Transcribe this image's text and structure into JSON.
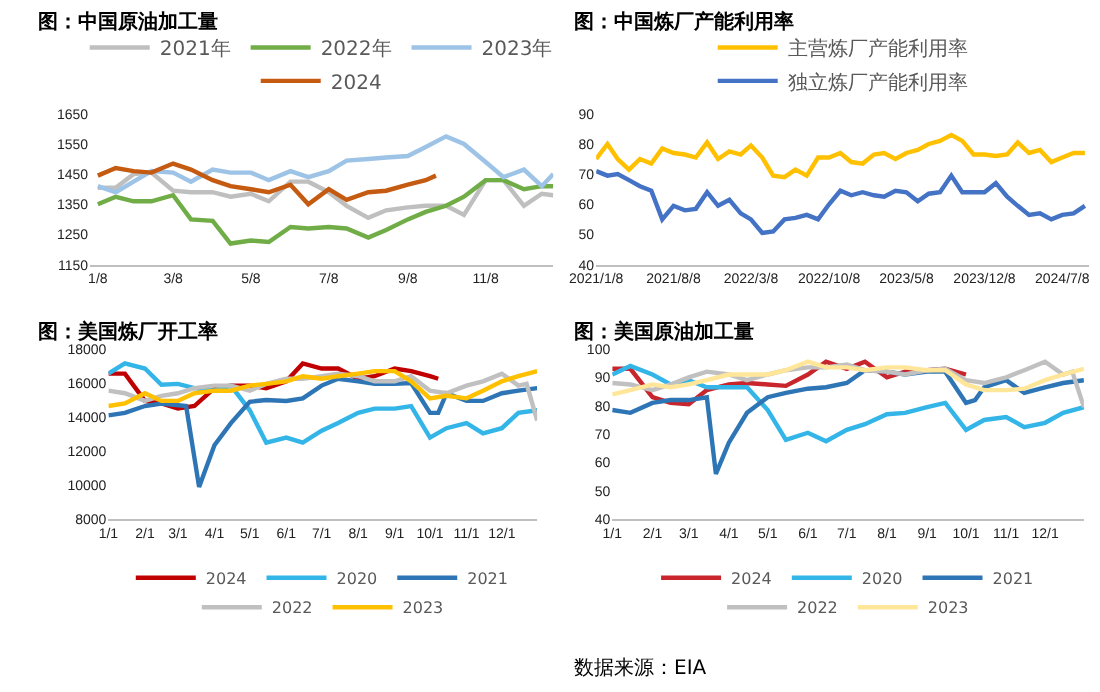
{
  "chart_data": [
    {
      "type": "line",
      "title": "图：中国原油加工量",
      "legend": "top",
      "x": [
        "--01-08",
        "--01-22",
        "--02-05",
        "--02-19",
        "--03-08",
        "--03-22",
        "--04-08",
        "--04-22",
        "--05-08",
        "--05-22",
        "--06-08",
        "--06-22",
        "--07-08",
        "--07-22",
        "--08-08",
        "--08-22",
        "--09-08",
        "--09-22",
        "--10-08",
        "--10-22",
        "--11-08",
        "--11-22",
        "--12-08",
        "--12-22",
        "--12-31"
      ],
      "xlim": [
        "--01-02",
        "--12-31"
      ],
      "xticks": [
        {
          "value": "--01-08",
          "label": "1/8"
        },
        {
          "value": "--03-08",
          "label": "3/8"
        },
        {
          "value": "--05-08",
          "label": "5/8"
        },
        {
          "value": "--07-08",
          "label": "7/8"
        },
        {
          "value": "--09-08",
          "label": "9/8"
        },
        {
          "value": "--11-08",
          "label": "11/8"
        }
      ],
      "ylim": [
        1150,
        1650
      ],
      "yticks": [
        1150,
        1250,
        1350,
        1450,
        1550,
        1650
      ],
      "series": [
        {
          "name": "2021年",
          "color": "#bfbfbf",
          "values": [
            1405,
            1405,
            1450,
            1455,
            1395,
            1390,
            1390,
            1375,
            1385,
            1360,
            1425,
            1425,
            1390,
            1345,
            1305,
            1330,
            1340,
            1345,
            1345,
            1315,
            1430,
            1430,
            1345,
            1385,
            1380
          ]
        },
        {
          "name": "2022年",
          "color": "#70ad47",
          "values": [
            1350,
            1375,
            1360,
            1360,
            1380,
            1300,
            1295,
            1220,
            1230,
            1225,
            1275,
            1270,
            1275,
            1270,
            1240,
            1265,
            1300,
            1325,
            1345,
            1375,
            1430,
            1430,
            1400,
            1410,
            1410
          ]
        },
        {
          "name": "2023年",
          "color": "#9dc3e6",
          "values": [
            1410,
            1390,
            1425,
            1460,
            1455,
            1425,
            1465,
            1455,
            1455,
            1430,
            1460,
            1440,
            1460,
            1495,
            1500,
            1505,
            1510,
            1540,
            1575,
            1550,
            1490,
            1440,
            1465,
            1410,
            1450
          ]
        },
        {
          "name": "2024",
          "color": "#c55a11",
          "x": [
            "--01-08",
            "--01-22",
            "--02-05",
            "--02-19",
            "--03-08",
            "--03-22",
            "--04-08",
            "--04-22",
            "--05-08",
            "--05-22",
            "--06-08",
            "--06-22",
            "--07-08",
            "--07-22",
            "--08-08",
            "--08-22",
            "--09-08",
            "--09-22",
            "--09-30"
          ],
          "values": [
            1445,
            1470,
            1460,
            1455,
            1485,
            1465,
            1430,
            1410,
            1400,
            1390,
            1415,
            1350,
            1400,
            1365,
            1390,
            1395,
            1415,
            1430,
            1445
          ]
        }
      ]
    },
    {
      "type": "line",
      "title": "图：中国炼厂产能利用率",
      "legend": "top",
      "x": [
        "2021-01-08",
        "2021-02-08",
        "2021-03-08",
        "2021-04-08",
        "2021-05-08",
        "2021-06-08",
        "2021-07-08",
        "2021-08-08",
        "2021-09-08",
        "2021-10-08",
        "2021-11-08",
        "2021-12-08",
        "2022-01-08",
        "2022-02-08",
        "2022-03-08",
        "2022-04-08",
        "2022-05-08",
        "2022-06-08",
        "2022-07-08",
        "2022-08-08",
        "2022-09-08",
        "2022-10-08",
        "2022-11-08",
        "2022-12-08",
        "2023-01-08",
        "2023-02-08",
        "2023-03-08",
        "2023-04-08",
        "2023-05-08",
        "2023-06-08",
        "2023-07-08",
        "2023-08-08",
        "2023-09-08",
        "2023-10-08",
        "2023-11-08",
        "2023-12-08",
        "2024-01-08",
        "2024-02-08",
        "2024-03-08",
        "2024-04-08",
        "2024-05-08",
        "2024-06-08",
        "2024-07-08",
        "2024-08-08",
        "2024-09-08"
      ],
      "xlim": [
        "2021-01-08",
        "2024-09-20"
      ],
      "xticks": [
        {
          "value": "2021-01-08",
          "label": "2021/1/8"
        },
        {
          "value": "2021-08-08",
          "label": "2021/8/8"
        },
        {
          "value": "2022-03-08",
          "label": "2022/3/8"
        },
        {
          "value": "2022-10-08",
          "label": "2022/10/8"
        },
        {
          "value": "2023-05-08",
          "label": "2023/5/8"
        },
        {
          "value": "2023-12-08",
          "label": "2023/12/8"
        },
        {
          "value": "2024-07-08",
          "label": "2024/7/8"
        }
      ],
      "ylim": [
        40,
        90
      ],
      "yticks": [
        40,
        50,
        60,
        70,
        80,
        90
      ],
      "series": [
        {
          "name": "主营炼厂产能利用率",
          "color": "#ffc000",
          "values": [
            75,
            80,
            75,
            71.5,
            75,
            73.5,
            78.5,
            77,
            76.5,
            75.5,
            80.5,
            75,
            77.5,
            76.5,
            79.5,
            75.5,
            69.5,
            69,
            71.5,
            69.5,
            75.5,
            75.5,
            77,
            74,
            73.5,
            76.5,
            77,
            75,
            77,
            78,
            80,
            81,
            83,
            81,
            76.5,
            76.5,
            76,
            76.5,
            80.5,
            77,
            78,
            74,
            75.5,
            77,
            77
          ]
        },
        {
          "name": "独立炼厂产能利用率",
          "color": "#4472c4",
          "values": [
            71,
            69.5,
            70,
            68,
            66,
            64.5,
            55,
            59.5,
            58,
            58.5,
            64,
            59.5,
            61.5,
            57,
            55,
            50.5,
            51,
            55,
            55.5,
            56.5,
            55,
            60,
            64.5,
            63,
            64,
            63,
            62.5,
            64.5,
            64,
            61,
            63.5,
            64,
            69.5,
            64,
            64,
            64,
            67,
            62.5,
            59.5,
            56.5,
            57,
            55,
            56.5,
            57,
            59.5
          ]
        }
      ]
    },
    {
      "type": "line",
      "title": "图：美国炼厂开工率",
      "legend": "bottom",
      "x": [
        "--01-01",
        "--01-15",
        "--02-01",
        "--02-15",
        "--03-01",
        "--03-15",
        "--04-01",
        "--04-15",
        "--05-01",
        "--05-15",
        "--06-01",
        "--06-15",
        "--07-01",
        "--07-15",
        "--08-01",
        "--08-15",
        "--09-01",
        "--09-15",
        "--10-01",
        "--10-15",
        "--11-01",
        "--11-15",
        "--12-01",
        "--12-15",
        "--12-31"
      ],
      "xlim": [
        "--01-01",
        "--12-31"
      ],
      "xticks": [
        {
          "value": "--01-01",
          "label": "1/1"
        },
        {
          "value": "--02-01",
          "label": "2/1"
        },
        {
          "value": "--03-01",
          "label": "3/1"
        },
        {
          "value": "--04-01",
          "label": "4/1"
        },
        {
          "value": "--05-01",
          "label": "5/1"
        },
        {
          "value": "--06-01",
          "label": "6/1"
        },
        {
          "value": "--07-01",
          "label": "7/1"
        },
        {
          "value": "--08-01",
          "label": "8/1"
        },
        {
          "value": "--09-01",
          "label": "9/1"
        },
        {
          "value": "--10-01",
          "label": "10/1"
        },
        {
          "value": "--11-01",
          "label": "11/1"
        },
        {
          "value": "--12-01",
          "label": "12/1"
        }
      ],
      "ylim": [
        8000,
        18000
      ],
      "yticks": [
        8000,
        10000,
        12000,
        14000,
        16000,
        18000
      ],
      "series": [
        {
          "name": "2024",
          "color": "#c00000",
          "x": [
            "--01-01",
            "--01-15",
            "--02-01",
            "--02-15",
            "--03-01",
            "--03-15",
            "--04-01",
            "--04-15",
            "--05-01",
            "--05-15",
            "--06-01",
            "--06-15",
            "--07-01",
            "--07-15",
            "--08-01",
            "--08-15",
            "--09-01",
            "--09-15",
            "--10-01",
            "--10-08"
          ],
          "values": [
            16550,
            16550,
            14950,
            14800,
            14500,
            14650,
            15700,
            15850,
            15850,
            15700,
            16100,
            17150,
            16850,
            16850,
            16250,
            16400,
            16850,
            16700,
            16400,
            16250
          ]
        },
        {
          "name": "2020",
          "color": "#33b5e8",
          "values": [
            16550,
            17150,
            16850,
            15900,
            15950,
            15700,
            15550,
            15850,
            14400,
            12500,
            12800,
            12500,
            13200,
            13650,
            14250,
            14500,
            14500,
            14650,
            12800,
            13350,
            13650,
            13050,
            13350,
            14250,
            14400
          ]
        },
        {
          "name": "2021",
          "color": "#2e75b6",
          "x": [
            "--01-01",
            "--01-15",
            "--02-01",
            "--02-15",
            "--03-08",
            "--03-19",
            "--04-01",
            "--04-15",
            "--05-01",
            "--05-15",
            "--06-01",
            "--06-15",
            "--07-01",
            "--07-15",
            "--08-01",
            "--08-15",
            "--09-01",
            "--09-15",
            "--10-01",
            "--10-08",
            "--10-15",
            "--11-01",
            "--11-15",
            "--12-01",
            "--12-15",
            "--12-31"
          ],
          "values": [
            14100,
            14250,
            14650,
            14800,
            14650,
            9900,
            12350,
            13650,
            14900,
            15000,
            14950,
            15100,
            15850,
            16250,
            16100,
            15950,
            15950,
            16000,
            14250,
            14250,
            15400,
            14950,
            14950,
            15400,
            15550,
            15700
          ]
        },
        {
          "name": "2022",
          "color": "#c0c0c0",
          "x": [
            "--01-01",
            "--01-15",
            "--02-01",
            "--02-15",
            "--03-01",
            "--03-15",
            "--04-01",
            "--04-15",
            "--05-01",
            "--05-15",
            "--06-01",
            "--06-15",
            "--07-01",
            "--07-15",
            "--08-01",
            "--08-15",
            "--09-01",
            "--09-15",
            "--10-01",
            "--10-15",
            "--11-01",
            "--11-15",
            "--12-01",
            "--12-15",
            "--12-22",
            "--12-31"
          ],
          "values": [
            15550,
            15400,
            14950,
            15250,
            15400,
            15700,
            15850,
            15850,
            15550,
            15950,
            16250,
            16250,
            16400,
            16550,
            16400,
            16100,
            16100,
            16400,
            15550,
            15400,
            15850,
            16100,
            16550,
            15850,
            15950,
            13800
          ]
        },
        {
          "name": "2023",
          "color": "#ffc000",
          "values": [
            14650,
            14800,
            15400,
            14950,
            14950,
            15400,
            15550,
            15550,
            15850,
            15950,
            16100,
            16400,
            16250,
            16400,
            16550,
            16700,
            16700,
            16100,
            15100,
            15250,
            15100,
            15550,
            16100,
            16400,
            16700
          ]
        }
      ]
    },
    {
      "type": "line",
      "title": "图：美国原油加工量",
      "legend": "bottom",
      "annotations": [
        "数据来源：EIA"
      ],
      "x": [
        "--01-01",
        "--01-15",
        "--02-01",
        "--02-15",
        "--03-01",
        "--03-15",
        "--04-01",
        "--04-15",
        "--05-01",
        "--05-15",
        "--06-01",
        "--06-15",
        "--07-01",
        "--07-15",
        "--08-01",
        "--08-15",
        "--09-01",
        "--09-15",
        "--10-01",
        "--10-15",
        "--11-01",
        "--11-15",
        "--12-01",
        "--12-15",
        "--12-31"
      ],
      "xlim": [
        "--01-01",
        "--12-31"
      ],
      "xticks": [
        {
          "value": "--01-01",
          "label": "1/1"
        },
        {
          "value": "--02-01",
          "label": "2/1"
        },
        {
          "value": "--03-01",
          "label": "3/1"
        },
        {
          "value": "--04-01",
          "label": "4/1"
        },
        {
          "value": "--05-01",
          "label": "5/1"
        },
        {
          "value": "--06-01",
          "label": "6/1"
        },
        {
          "value": "--07-01",
          "label": "7/1"
        },
        {
          "value": "--08-01",
          "label": "8/1"
        },
        {
          "value": "--09-01",
          "label": "9/1"
        },
        {
          "value": "--10-01",
          "label": "10/1"
        },
        {
          "value": "--11-01",
          "label": "11/1"
        },
        {
          "value": "--12-01",
          "label": "12/1"
        }
      ],
      "ylim": [
        40,
        100
      ],
      "yticks": [
        40,
        50,
        60,
        70,
        80,
        90,
        100
      ],
      "series": [
        {
          "name": "2024",
          "color": "#c8252c",
          "x": [
            "--01-01",
            "--01-15",
            "--02-01",
            "--02-15",
            "--03-01",
            "--03-15",
            "--04-01",
            "--04-15",
            "--05-01",
            "--05-15",
            "--06-01",
            "--06-15",
            "--07-01",
            "--07-15",
            "--08-01",
            "--08-15",
            "--09-01",
            "--09-15",
            "--10-01"
          ],
          "values": [
            93,
            93,
            83,
            81,
            80.5,
            85.5,
            87.5,
            88,
            87.5,
            87,
            91,
            95.5,
            93,
            95.5,
            90,
            92,
            92.5,
            93,
            91
          ]
        },
        {
          "name": "2020",
          "color": "#33b5e8",
          "values": [
            91,
            94,
            91,
            87.5,
            89,
            86.5,
            86.5,
            86.5,
            78.5,
            68,
            70.5,
            67.5,
            71.5,
            73.5,
            77,
            77.5,
            79.5,
            81,
            71.5,
            75,
            76,
            72.5,
            74,
            77.5,
            79.5
          ]
        },
        {
          "name": "2021",
          "color": "#2e75b6",
          "x": [
            "--01-01",
            "--01-15",
            "--02-01",
            "--02-15",
            "--03-01",
            "--03-15",
            "--03-22",
            "--04-01",
            "--04-15",
            "--05-01",
            "--05-15",
            "--06-01",
            "--06-15",
            "--07-01",
            "--07-15",
            "--08-01",
            "--08-15",
            "--09-01",
            "--09-15",
            "--10-01",
            "--10-08",
            "--10-15",
            "--11-01",
            "--11-15",
            "--12-01",
            "--12-15",
            "--12-31"
          ],
          "values": [
            78.5,
            77.5,
            81,
            82,
            82,
            83,
            56,
            67,
            77.5,
            83,
            84.5,
            86,
            86.5,
            88,
            92.5,
            92,
            91,
            92,
            92,
            81,
            82,
            86.5,
            89,
            84.5,
            86.5,
            88,
            89
          ]
        },
        {
          "name": "2022",
          "color": "#c0c0c0",
          "x": [
            "--01-01",
            "--01-15",
            "--02-01",
            "--02-15",
            "--03-01",
            "--03-15",
            "--04-01",
            "--04-15",
            "--05-01",
            "--05-15",
            "--06-01",
            "--06-15",
            "--07-01",
            "--07-15",
            "--08-01",
            "--08-15",
            "--09-01",
            "--09-15",
            "--10-01",
            "--10-15",
            "--11-01",
            "--11-15",
            "--12-01",
            "--12-15",
            "--12-22",
            "--12-31"
          ],
          "values": [
            88,
            87.5,
            85.5,
            87.5,
            90,
            92,
            91,
            89,
            91,
            92.5,
            93.5,
            93.5,
            94.5,
            92.5,
            92,
            91,
            92.5,
            93,
            89,
            88,
            90,
            92.5,
            95.5,
            91,
            92,
            79.5
          ]
        },
        {
          "name": "2023",
          "color": "#ffe699",
          "values": [
            84,
            85.5,
            87.5,
            86.5,
            87.5,
            89,
            91,
            91,
            91,
            92.5,
            95.5,
            93.5,
            93.5,
            92.5,
            93.5,
            93.5,
            92.5,
            92.5,
            87.5,
            85.5,
            85.5,
            86,
            89,
            91,
            93
          ]
        }
      ]
    }
  ]
}
